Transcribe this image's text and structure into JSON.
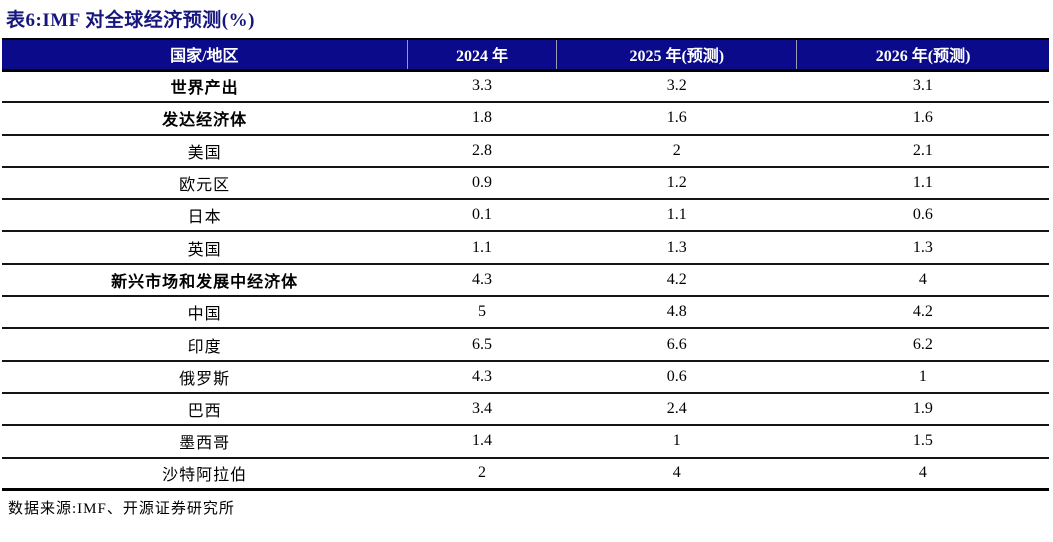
{
  "title": "表6:IMF 对全球经济预测(%)",
  "colors": {
    "header_bg": "#0A0A8A",
    "title_text": "#16167E",
    "header_text": "#FFFFFF",
    "row_border": "#141414"
  },
  "table": {
    "columns": [
      "国家/地区",
      "2024 年",
      "2025 年(预测)",
      "2026 年(预测)"
    ],
    "rows": [
      {
        "label": "世界产出",
        "bold": true,
        "values": [
          "3.3",
          "3.2",
          "3.1"
        ]
      },
      {
        "label": "发达经济体",
        "bold": true,
        "values": [
          "1.8",
          "1.6",
          "1.6"
        ]
      },
      {
        "label": "美国",
        "bold": false,
        "values": [
          "2.8",
          "2",
          "2.1"
        ]
      },
      {
        "label": "欧元区",
        "bold": false,
        "values": [
          "0.9",
          "1.2",
          "1.1"
        ]
      },
      {
        "label": "日本",
        "bold": false,
        "values": [
          "0.1",
          "1.1",
          "0.6"
        ]
      },
      {
        "label": "英国",
        "bold": false,
        "values": [
          "1.1",
          "1.3",
          "1.3"
        ]
      },
      {
        "label": "新兴市场和发展中经济体",
        "bold": true,
        "values": [
          "4.3",
          "4.2",
          "4"
        ]
      },
      {
        "label": "中国",
        "bold": false,
        "values": [
          "5",
          "4.8",
          "4.2"
        ]
      },
      {
        "label": "印度",
        "bold": false,
        "values": [
          "6.5",
          "6.6",
          "6.2"
        ]
      },
      {
        "label": "俄罗斯",
        "bold": false,
        "values": [
          "4.3",
          "0.6",
          "1"
        ]
      },
      {
        "label": "巴西",
        "bold": false,
        "values": [
          "3.4",
          "2.4",
          "1.9"
        ]
      },
      {
        "label": "墨西哥",
        "bold": false,
        "values": [
          "1.4",
          "1",
          "1.5"
        ]
      },
      {
        "label": "沙特阿拉伯",
        "bold": false,
        "values": [
          "2",
          "4",
          "4"
        ]
      }
    ]
  },
  "footer": "数据来源:IMF、开源证券研究所"
}
